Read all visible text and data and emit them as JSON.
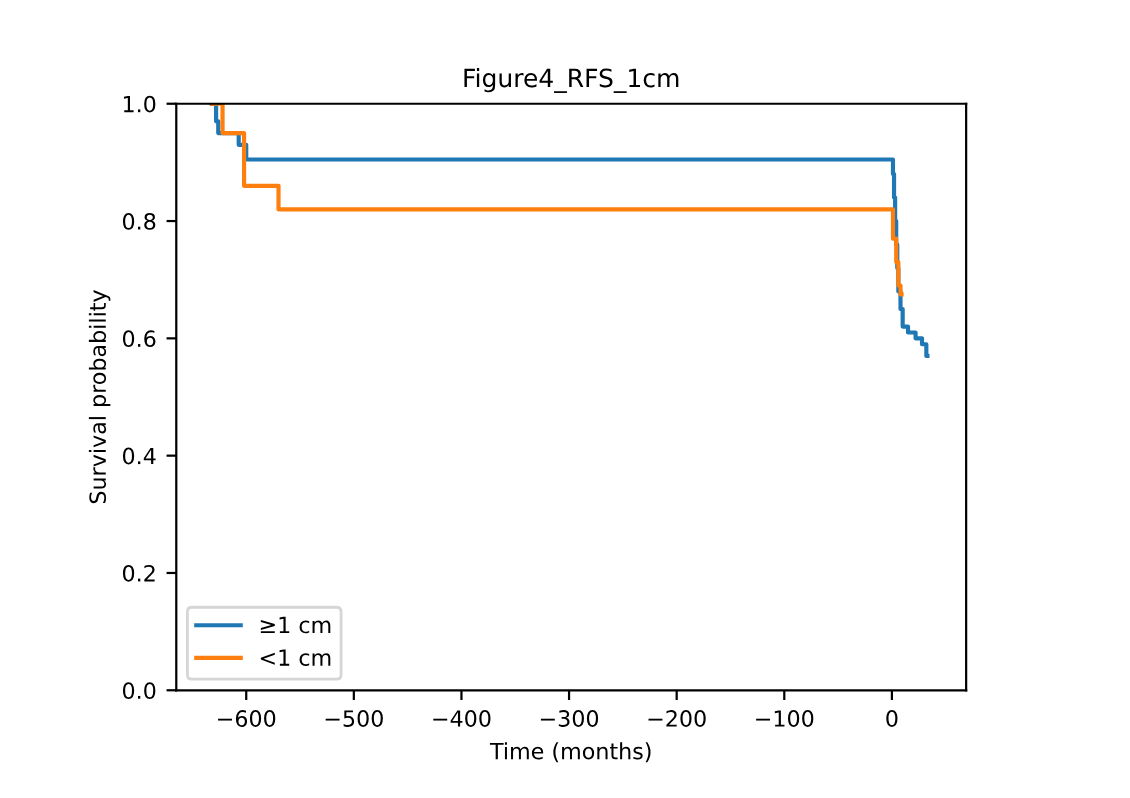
{
  "chart_data": {
    "type": "step",
    "title": "Figure4_RFS_1cm",
    "xlabel": "Time (months)",
    "ylabel": "Survival probability",
    "xlim": [
      -665,
      69
    ],
    "ylim": [
      0.0,
      1.0
    ],
    "xticks": [
      {
        "value": -600,
        "label": "−600"
      },
      {
        "value": -500,
        "label": "−500"
      },
      {
        "value": -400,
        "label": "−400"
      },
      {
        "value": -300,
        "label": "−300"
      },
      {
        "value": -200,
        "label": "−200"
      },
      {
        "value": -100,
        "label": "−100"
      },
      0
    ],
    "yticks": [
      {
        "value": 0.0,
        "label": "0.0"
      },
      {
        "value": 0.2,
        "label": "0.2"
      },
      {
        "value": 0.4,
        "label": "0.4"
      },
      {
        "value": 0.6,
        "label": "0.6"
      },
      {
        "value": 0.8,
        "label": "0.8"
      },
      {
        "value": 1.0,
        "label": "1.0"
      }
    ],
    "legend": "bottom left",
    "grid": false,
    "series": [
      {
        "name": "≥1 cm",
        "color": "#1f77b4",
        "x": [
          -632,
          -628,
          -626,
          -607,
          -600,
          0,
          1,
          2,
          3,
          4,
          5,
          6,
          8,
          10,
          15,
          22,
          28,
          32,
          33
        ],
        "values": [
          1.0,
          0.97,
          0.95,
          0.93,
          0.905,
          0.905,
          0.88,
          0.84,
          0.8,
          0.76,
          0.72,
          0.68,
          0.65,
          0.62,
          0.61,
          0.6,
          0.59,
          0.57,
          0.57
        ]
      },
      {
        "name": "<1 cm",
        "color": "#ff7f0e",
        "x": [
          -632,
          -622,
          -602,
          -570,
          1,
          4,
          6,
          8,
          9
        ],
        "values": [
          1.0,
          0.95,
          0.86,
          0.82,
          0.77,
          0.73,
          0.69,
          0.675,
          0.675
        ]
      }
    ]
  }
}
